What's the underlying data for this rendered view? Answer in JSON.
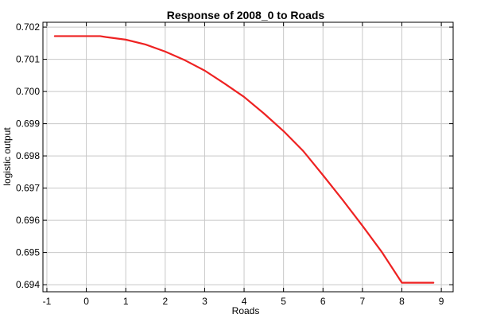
{
  "chart_data": {
    "type": "line",
    "title": "Response of 2008_0 to Roads",
    "xlabel": "Roads",
    "ylabel": "logistic output",
    "xlim": [
      -1.1,
      9.3
    ],
    "ylim": [
      0.69378,
      0.70215
    ],
    "xticks": [
      -1,
      0,
      1,
      2,
      3,
      4,
      5,
      6,
      7,
      8,
      9
    ],
    "xtick_labels": [
      "-1",
      "0",
      "1",
      "2",
      "3",
      "4",
      "5",
      "6",
      "7",
      "8",
      "9"
    ],
    "yticks": [
      0.694,
      0.695,
      0.696,
      0.697,
      0.698,
      0.699,
      0.7,
      0.701,
      0.702
    ],
    "ytick_labels": [
      "0.694",
      "0.695",
      "0.696",
      "0.697",
      "0.698",
      "0.699",
      "0.700",
      "0.701",
      "0.702"
    ],
    "grid": true,
    "series": [
      {
        "color": "#ee2222",
        "x": [
          -0.8,
          0.35,
          0.5,
          1.0,
          1.5,
          2.0,
          2.5,
          3.0,
          3.5,
          4.0,
          4.5,
          5.0,
          5.5,
          6.0,
          6.5,
          7.0,
          7.5,
          8.0,
          8.8
        ],
        "y": [
          0.70172,
          0.70172,
          0.70169,
          0.70161,
          0.70146,
          0.70124,
          0.70097,
          0.70065,
          0.70025,
          0.69983,
          0.69932,
          0.69877,
          0.69815,
          0.6974,
          0.69663,
          0.69583,
          0.695,
          0.69406,
          0.69406
        ]
      }
    ]
  }
}
